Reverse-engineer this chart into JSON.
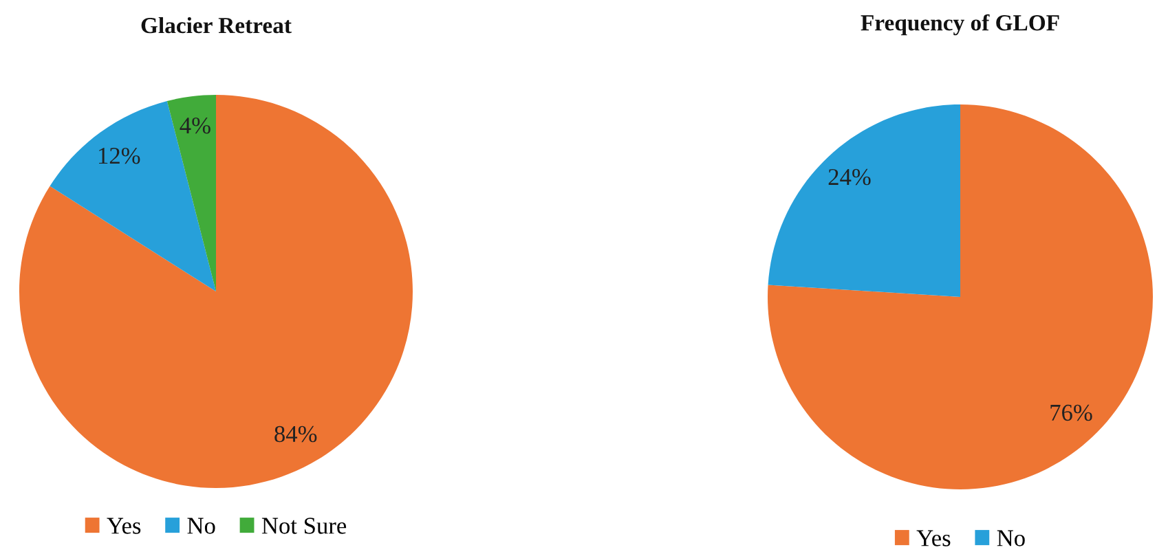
{
  "chart_data": [
    {
      "type": "pie",
      "title": "Glacier Retreat",
      "categories": [
        "Yes",
        "No",
        "Not Sure"
      ],
      "values": [
        84,
        12,
        4
      ],
      "colors": [
        "#ee7533",
        "#27a0da",
        "#41ab3a"
      ],
      "value_labels": [
        "84%",
        "12%",
        "4%"
      ],
      "legend": "bottom"
    },
    {
      "type": "pie",
      "title": "Frequency of GLOF",
      "categories": [
        "Yes",
        "No"
      ],
      "values": [
        76,
        24
      ],
      "colors": [
        "#ee7533",
        "#27a0da"
      ],
      "value_labels": [
        "76%",
        "24%"
      ],
      "legend": "bottom"
    }
  ]
}
